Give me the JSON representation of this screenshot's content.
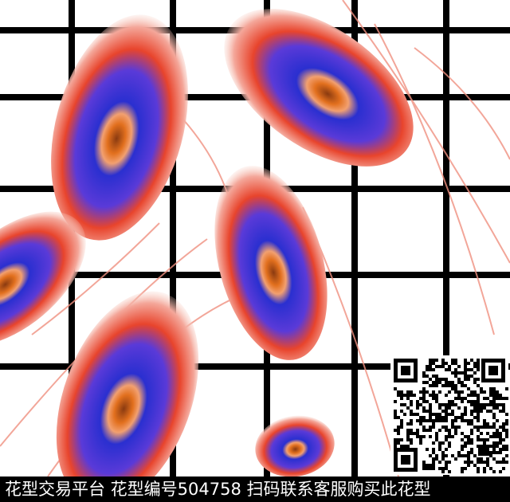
{
  "image": {
    "subject": "peacock-feather pattern over black grid",
    "colors": {
      "grid": "#000000",
      "feather_blue": "#2a2fd0",
      "feather_red": "#e8442c",
      "feather_pink": "#f4a79a",
      "eye_orange": "#e2701e"
    }
  },
  "watermark": {
    "caption": "花型交易平台 花型编号504758 扫码联系客服购买此花型"
  },
  "qr_code": {
    "icon": "qr-code-icon"
  }
}
